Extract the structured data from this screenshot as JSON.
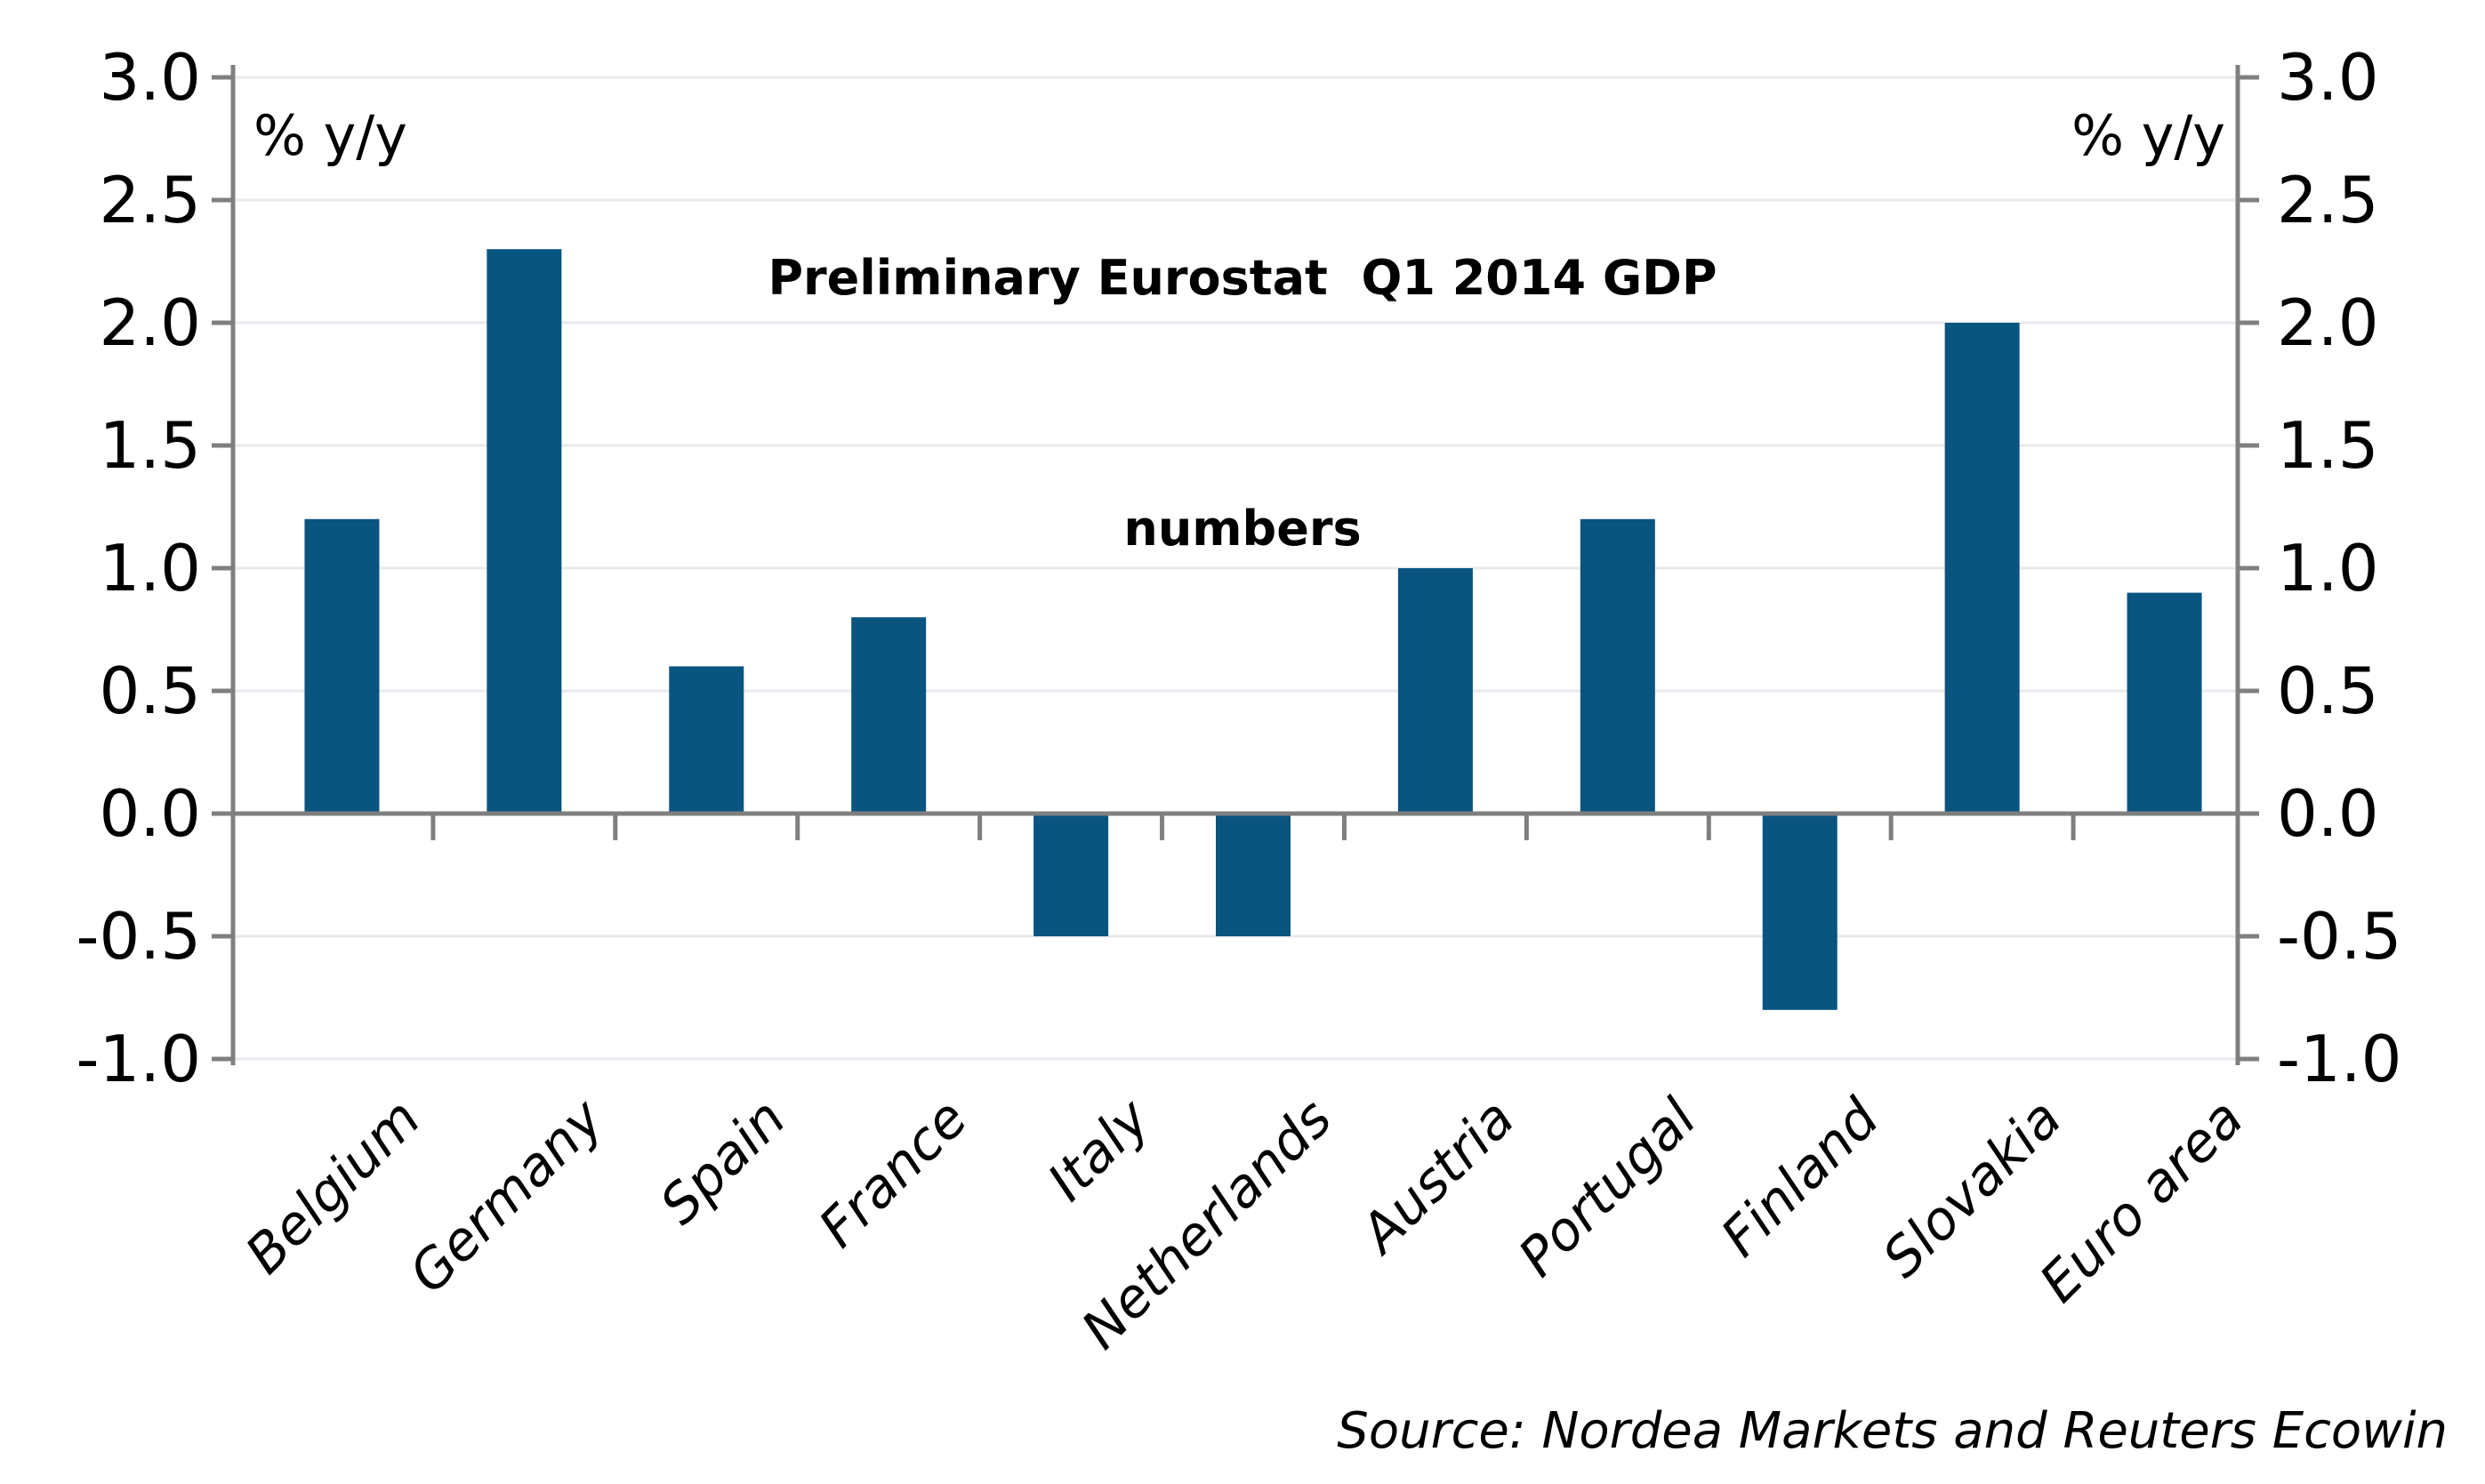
{
  "chart_data": {
    "type": "bar",
    "title": "Preliminary Eurostat  Q1 2014 GDP numbers",
    "title_line1": "Preliminary Eurostat  Q1 2014 GDP",
    "title_line2": "numbers",
    "left_axis_unit": "% y/y",
    "right_axis_unit": "% y/y",
    "categories": [
      "Belgium",
      "Germany",
      "Spain",
      "France",
      "Italy",
      "Netherlands",
      "Austria",
      "Portugal",
      "Finland",
      "Slovakia",
      "Euro area"
    ],
    "values": [
      1.2,
      2.3,
      0.6,
      0.8,
      -0.5,
      -0.5,
      1.0,
      1.2,
      -0.8,
      2.0,
      0.9
    ],
    "y_ticks": [
      3.0,
      2.5,
      2.0,
      1.5,
      1.0,
      0.5,
      0.0,
      -0.5,
      -1.0
    ],
    "y_tick_labels": [
      "3.0",
      "2.5",
      "2.0",
      "1.5",
      "1.0",
      "0.5",
      "0.0",
      "-0.5",
      "-1.0"
    ],
    "ylim": [
      -1.0,
      3.0
    ],
    "grid": true,
    "legend": "none",
    "xlabel": "",
    "ylabel": "% y/y",
    "source": "Source: Nordea Markets and Reuters Ecowin",
    "colors": {
      "bar": "#0A5480",
      "grid": "#E7EAEF",
      "axis": "#7F7F7F",
      "text": "#000000",
      "background": "#FFFFFF"
    }
  }
}
